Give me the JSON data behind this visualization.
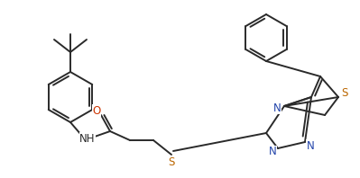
{
  "bg_color": "#ffffff",
  "line_color": "#2a2a2a",
  "atom_colors": {
    "O": "#cc3300",
    "N": "#2244aa",
    "S": "#bb6600",
    "C": "#2a2a2a"
  },
  "line_width": 1.4,
  "font_size": 8.5,
  "figsize": [
    3.99,
    1.98
  ],
  "dpi": 100
}
